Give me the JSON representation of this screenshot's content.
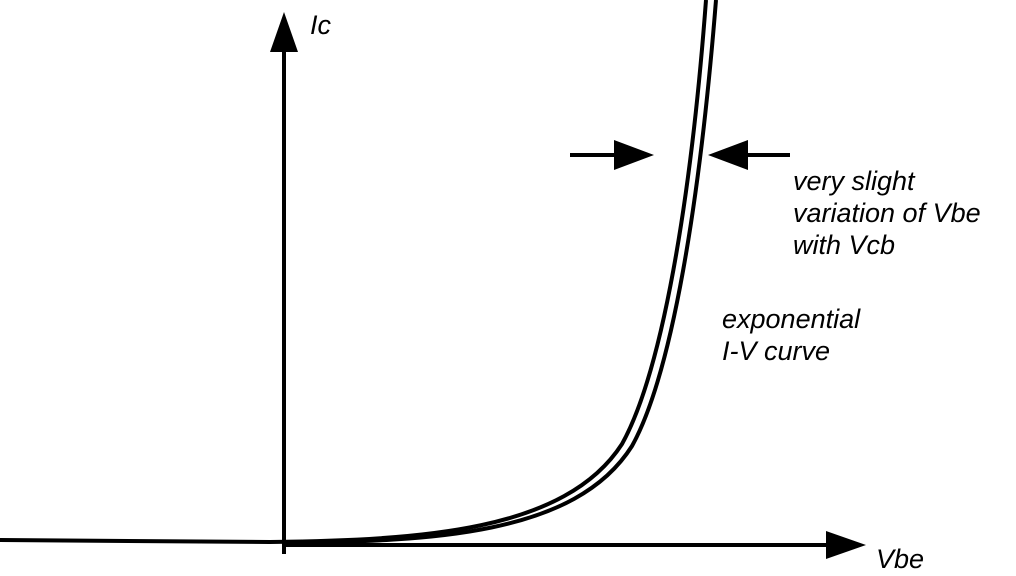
{
  "axes": {
    "y_label": "Ic",
    "x_label": "Vbe"
  },
  "annotations": [
    {
      "lines": [
        "very slight",
        "variation of Vbe",
        "with Vcb"
      ]
    },
    {
      "lines": [
        "exponential",
        "I-V curve"
      ]
    }
  ]
}
